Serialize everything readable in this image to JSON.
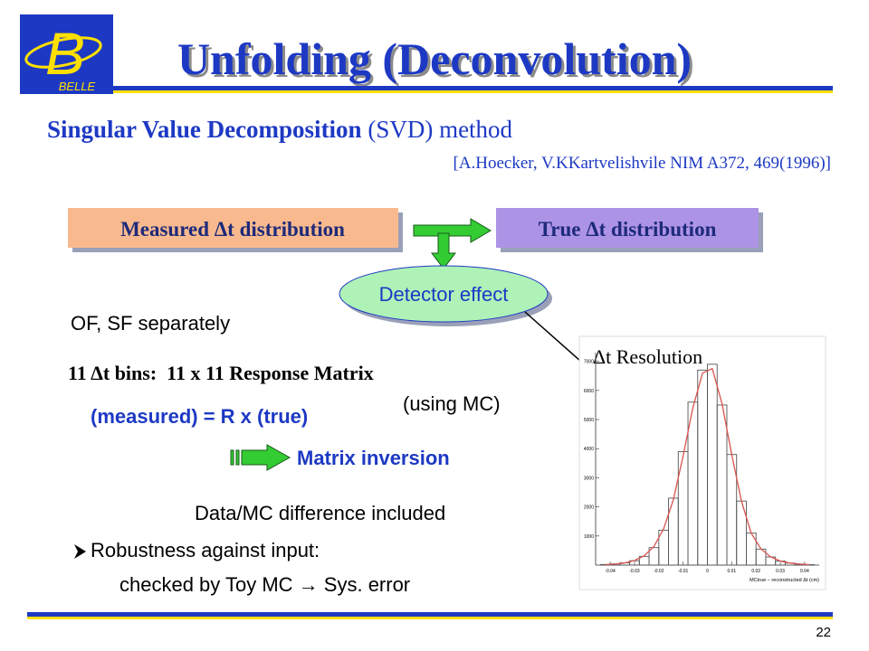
{
  "logo": {
    "letter": "B",
    "text": "BELLE"
  },
  "title": "Unfolding (Deconvolution)",
  "method": {
    "bold": "Singular Value Decomposition",
    "rest": " (SVD) method"
  },
  "citation": "[A.Hoecker, V.KKartvelishvile NIM A372, 469(1996)]",
  "box_measured": "Measured Δt distribution",
  "box_true": "True Δt distribution",
  "detector": "Detector effect",
  "separately": "OF, SF separately",
  "bins_line": "11 Δt bins:  11 x 11 Response Matrix",
  "using_mc": "(using MC)",
  "equation": "(measured) = R x (true)",
  "inversion": "Matrix inversion",
  "difference": "Data/MC difference included",
  "robustness": "Robustness against input:",
  "checked": "checked by Toy MC → Sys. error",
  "resolution_label": "Δt Resolution",
  "page_number": "22",
  "chart_data": {
    "type": "histogram",
    "xlabel": "MCtrue − reconstructed Δt (cm)",
    "bins": [
      -0.044,
      -0.04,
      -0.036,
      -0.032,
      -0.028,
      -0.024,
      -0.02,
      -0.016,
      -0.012,
      -0.008,
      -0.004,
      0.0,
      0.004,
      0.008,
      0.012,
      0.016,
      0.02,
      0.024,
      0.028,
      0.032,
      0.036,
      0.04,
      0.044
    ],
    "counts": [
      20,
      40,
      80,
      150,
      300,
      600,
      1200,
      2300,
      3900,
      5600,
      6700,
      6900,
      5500,
      3800,
      2200,
      1100,
      550,
      280,
      140,
      70,
      35,
      15
    ],
    "color": "#555555",
    "fit": {
      "color": "#d9534f",
      "values": [
        15,
        35,
        75,
        160,
        320,
        640,
        1250,
        2250,
        3750,
        5400,
        6600,
        6750,
        5550,
        3800,
        2200,
        1100,
        560,
        280,
        140,
        70,
        35,
        15
      ]
    },
    "xlim": [
      -0.046,
      0.046
    ],
    "ylim": [
      0,
      7300
    ],
    "xticks": [
      -0.04,
      -0.03,
      -0.02,
      -0.01,
      0,
      0.01,
      0.02,
      0.03,
      0.04
    ],
    "yticks": [
      1000,
      2000,
      3000,
      4000,
      5000,
      6000,
      7000
    ]
  }
}
